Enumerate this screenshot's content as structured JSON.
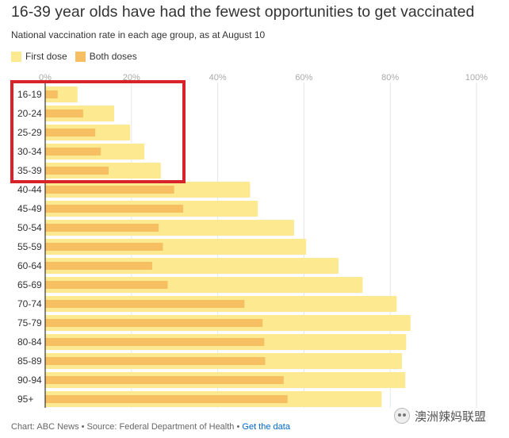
{
  "header": {
    "title": "16-39 year olds have had the fewest opportunities to get vaccinated",
    "subtitle": "National vaccination rate in each age group, as at August 10"
  },
  "footer": {
    "credit": "Chart: ABC News • Source: Federal Department of Health • ",
    "link": "Get the data"
  },
  "watermark": {
    "text": "澳洲辣妈联盟",
    "icon": "wechat-icon"
  },
  "colors": {
    "first_dose": "#fde98f",
    "both_doses": "#f6bf62",
    "highlight_box": "#d8232a",
    "grid": "#e6e6e6"
  },
  "chart_data": {
    "type": "bar",
    "orientation": "horizontal",
    "title": "16-39 year olds have had the fewest opportunities to get vaccinated",
    "subtitle": "National vaccination rate in each age group, as at August 10",
    "categories": [
      "16-19",
      "20-24",
      "25-29",
      "30-34",
      "35-39",
      "40-44",
      "45-49",
      "50-54",
      "55-59",
      "60-64",
      "65-69",
      "70-74",
      "75-79",
      "80-84",
      "85-89",
      "90-94",
      "95+"
    ],
    "series": [
      {
        "name": "First dose",
        "values": [
          7.5,
          16.0,
          19.7,
          23.0,
          26.8,
          47.5,
          49.3,
          57.7,
          60.5,
          68.0,
          73.6,
          81.5,
          84.7,
          83.7,
          82.7,
          83.5,
          78.0
        ]
      },
      {
        "name": "Both doses",
        "values": [
          2.9,
          8.8,
          11.6,
          12.9,
          14.7,
          29.9,
          32.0,
          26.3,
          27.3,
          24.8,
          28.4,
          46.2,
          50.4,
          50.8,
          51.0,
          55.3,
          56.2
        ]
      }
    ],
    "xlim": [
      0,
      100
    ],
    "xticks": [
      "0%",
      "20%",
      "40%",
      "60%",
      "80%",
      "100%"
    ],
    "grid": true,
    "legend": "top-left",
    "highlight": {
      "categories": [
        "16-19",
        "20-24",
        "25-29",
        "30-34",
        "35-39"
      ],
      "style": "red box"
    }
  }
}
